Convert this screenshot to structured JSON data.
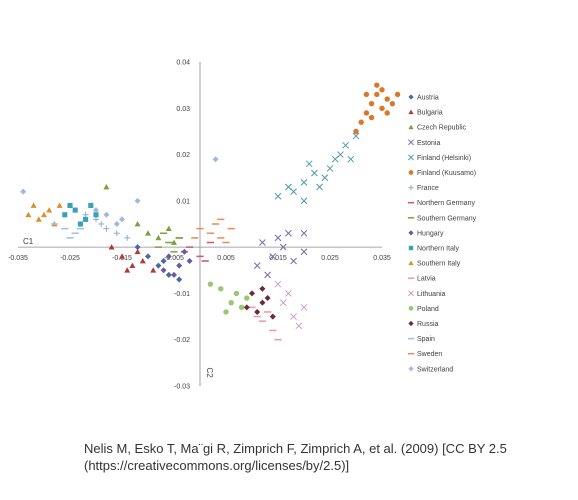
{
  "chart_data": {
    "type": "scatter",
    "title": "",
    "xlabel": "C1",
    "ylabel": "C2",
    "xlim": [
      -0.035,
      0.035
    ],
    "ylim": [
      -0.03,
      0.04
    ],
    "x_ticks": [
      "-0.035",
      "-0.025",
      "-0.015",
      "-0.005",
      "0.005",
      "0.015",
      "0.025",
      "0.035"
    ],
    "y_ticks": [
      "0.04",
      "0.03",
      "0.02",
      "0.01",
      "-0.01",
      "-0.02",
      "-0.03"
    ],
    "x_tick_values": [
      -0.035,
      -0.025,
      -0.015,
      -0.005,
      0.005,
      0.015,
      0.025,
      0.035
    ],
    "y_tick_values": [
      0.04,
      0.03,
      0.02,
      0.01,
      -0.01,
      -0.02,
      -0.03
    ],
    "grid": false,
    "legend_position": "right",
    "series": [
      {
        "name": "Austria",
        "marker": "diamond",
        "color": "#4a67a8",
        "points": [
          [
            -0.008,
            -0.004
          ],
          [
            -0.006,
            -0.006
          ],
          [
            -0.01,
            -0.002
          ],
          [
            -0.004,
            -0.007
          ],
          [
            -0.012,
            0.0
          ],
          [
            -0.007,
            -0.003
          ]
        ]
      },
      {
        "name": "Bulgaria",
        "marker": "triangle",
        "color": "#b23a3a",
        "points": [
          [
            -0.015,
            -0.002
          ],
          [
            -0.013,
            -0.004
          ],
          [
            -0.011,
            -0.003
          ],
          [
            -0.017,
            0.0
          ],
          [
            -0.009,
            -0.005
          ],
          [
            -0.014,
            -0.005
          ],
          [
            -0.012,
            -0.001
          ]
        ]
      },
      {
        "name": "Czech Republic",
        "marker": "triangle",
        "color": "#7aa23a",
        "points": [
          [
            -0.008,
            0.002
          ],
          [
            -0.006,
            0.004
          ],
          [
            -0.01,
            0.003
          ],
          [
            -0.005,
            0.001
          ],
          [
            -0.012,
            0.005
          ],
          [
            -0.018,
            0.013
          ]
        ]
      },
      {
        "name": "Estonia",
        "marker": "x",
        "color": "#7b6aa8",
        "points": [
          [
            0.012,
            0.001
          ],
          [
            0.014,
            -0.002
          ],
          [
            0.016,
            0.0
          ],
          [
            0.018,
            -0.003
          ],
          [
            0.02,
            -0.001
          ],
          [
            0.015,
            0.002
          ],
          [
            0.011,
            -0.004
          ],
          [
            0.017,
            0.003
          ],
          [
            0.02,
            0.003
          ],
          [
            0.013,
            -0.006
          ]
        ]
      },
      {
        "name": "Finland (Helsinki)",
        "marker": "x",
        "color": "#4a9ab0",
        "points": [
          [
            0.018,
            0.012
          ],
          [
            0.02,
            0.014
          ],
          [
            0.022,
            0.016
          ],
          [
            0.025,
            0.017
          ],
          [
            0.027,
            0.02
          ],
          [
            0.023,
            0.013
          ],
          [
            0.028,
            0.022
          ],
          [
            0.03,
            0.024
          ],
          [
            0.026,
            0.019
          ],
          [
            0.02,
            0.01
          ],
          [
            0.024,
            0.015
          ],
          [
            0.017,
            0.013
          ],
          [
            0.015,
            0.011
          ],
          [
            0.029,
            0.019
          ],
          [
            0.021,
            0.018
          ]
        ]
      },
      {
        "name": "Finland (Kuusamo)",
        "marker": "circle",
        "color": "#d9772a",
        "points": [
          [
            0.031,
            0.027
          ],
          [
            0.032,
            0.029
          ],
          [
            0.033,
            0.031
          ],
          [
            0.034,
            0.033
          ],
          [
            0.035,
            0.03
          ],
          [
            0.036,
            0.032
          ],
          [
            0.033,
            0.028
          ],
          [
            0.034,
            0.035
          ],
          [
            0.037,
            0.031
          ],
          [
            0.032,
            0.033
          ],
          [
            0.035,
            0.034
          ],
          [
            0.036,
            0.029
          ],
          [
            0.03,
            0.025
          ],
          [
            0.038,
            0.033
          ]
        ]
      },
      {
        "name": "France",
        "marker": "plus",
        "color": "#8ab0c8",
        "points": [
          [
            -0.02,
            0.006
          ],
          [
            -0.018,
            0.004
          ],
          [
            -0.022,
            0.007
          ],
          [
            -0.016,
            0.003
          ],
          [
            -0.019,
            0.005
          ],
          [
            -0.014,
            0.002
          ]
        ]
      },
      {
        "name": "Northern Germany",
        "marker": "dash",
        "color": "#c86070",
        "points": [
          [
            -0.002,
            0.0
          ],
          [
            0.0,
            -0.002
          ],
          [
            -0.004,
            0.002
          ],
          [
            0.002,
            0.001
          ],
          [
            0.001,
            -0.003
          ],
          [
            -0.003,
            -0.001
          ]
        ]
      },
      {
        "name": "Southern Germany",
        "marker": "dash",
        "color": "#8aa048",
        "points": [
          [
            -0.006,
            0.001
          ],
          [
            -0.004,
            0.002
          ],
          [
            -0.008,
            0.0
          ],
          [
            -0.005,
            -0.001
          ],
          [
            -0.007,
            0.003
          ]
        ]
      },
      {
        "name": "Hungary",
        "marker": "diamond",
        "color": "#6a5aa0",
        "points": [
          [
            -0.006,
            -0.002
          ],
          [
            -0.004,
            -0.004
          ],
          [
            -0.002,
            -0.003
          ],
          [
            -0.005,
            -0.006
          ],
          [
            -0.003,
            -0.001
          ],
          [
            -0.007,
            -0.005
          ]
        ]
      },
      {
        "name": "Northern Italy",
        "marker": "square",
        "color": "#3aa0b8",
        "points": [
          [
            -0.024,
            0.008
          ],
          [
            -0.022,
            0.006
          ],
          [
            -0.026,
            0.007
          ],
          [
            -0.021,
            0.009
          ],
          [
            -0.023,
            0.005
          ],
          [
            -0.025,
            0.009
          ],
          [
            -0.02,
            0.007
          ]
        ]
      },
      {
        "name": "Southern Italy",
        "marker": "triangle",
        "color": "#d9902a",
        "points": [
          [
            -0.029,
            0.008
          ],
          [
            -0.031,
            0.006
          ],
          [
            -0.028,
            0.005
          ],
          [
            -0.032,
            0.009
          ],
          [
            -0.03,
            0.007
          ],
          [
            -0.027,
            0.009
          ],
          [
            -0.033,
            0.007
          ]
        ]
      },
      {
        "name": "Latvia",
        "marker": "dash",
        "color": "#e8a0a8",
        "points": [
          [
            0.01,
            -0.013
          ],
          [
            0.012,
            -0.016
          ],
          [
            0.014,
            -0.018
          ],
          [
            0.011,
            -0.015
          ],
          [
            0.015,
            -0.02
          ],
          [
            0.013,
            -0.014
          ]
        ]
      },
      {
        "name": "Lithuania",
        "marker": "x",
        "color": "#c89ac8",
        "points": [
          [
            0.016,
            -0.012
          ],
          [
            0.018,
            -0.015
          ],
          [
            0.017,
            -0.01
          ],
          [
            0.019,
            -0.017
          ],
          [
            0.015,
            -0.008
          ],
          [
            0.02,
            -0.013
          ]
        ]
      },
      {
        "name": "Poland",
        "marker": "circle",
        "color": "#9ac870",
        "points": [
          [
            0.004,
            -0.009
          ],
          [
            0.006,
            -0.012
          ],
          [
            0.008,
            -0.013
          ],
          [
            0.002,
            -0.008
          ],
          [
            0.007,
            -0.01
          ],
          [
            0.005,
            -0.014
          ],
          [
            0.009,
            -0.011
          ]
        ]
      },
      {
        "name": "Russia",
        "marker": "diamond",
        "color": "#6a2a3a",
        "points": [
          [
            0.01,
            -0.01
          ],
          [
            0.012,
            -0.012
          ],
          [
            0.011,
            -0.014
          ],
          [
            0.013,
            -0.011
          ],
          [
            0.009,
            -0.013
          ],
          [
            0.014,
            -0.015
          ],
          [
            0.012,
            -0.009
          ]
        ]
      },
      {
        "name": "Spain",
        "marker": "dash",
        "color": "#a8c0e0",
        "points": [
          [
            -0.026,
            0.004
          ],
          [
            -0.024,
            0.003
          ],
          [
            -0.028,
            0.005
          ],
          [
            -0.025,
            0.002
          ],
          [
            -0.023,
            0.004
          ]
        ]
      },
      {
        "name": "Sweden",
        "marker": "dash",
        "color": "#e89060",
        "points": [
          [
            0.002,
            0.003
          ],
          [
            0.004,
            0.002
          ],
          [
            0.006,
            0.004
          ],
          [
            0.0,
            0.004
          ],
          [
            0.003,
            0.005
          ],
          [
            0.005,
            0.001
          ],
          [
            -0.001,
            0.002
          ],
          [
            0.004,
            0.006
          ]
        ]
      },
      {
        "name": "Switzerland",
        "marker": "diamond",
        "color": "#a0b8e0",
        "points": [
          [
            -0.018,
            0.007
          ],
          [
            -0.016,
            0.005
          ],
          [
            -0.02,
            0.008
          ],
          [
            -0.015,
            0.006
          ],
          [
            -0.034,
            0.012
          ],
          [
            -0.012,
            0.01
          ],
          [
            0.003,
            0.019
          ]
        ]
      }
    ]
  },
  "caption": {
    "line1": "Nelis M, Esko T, Ma¨gi R, Zimprich F, Zimprich A, et al. (2009) [CC BY 2.5",
    "line2": "(https://creativecommons.org/licenses/by/2.5)]"
  }
}
